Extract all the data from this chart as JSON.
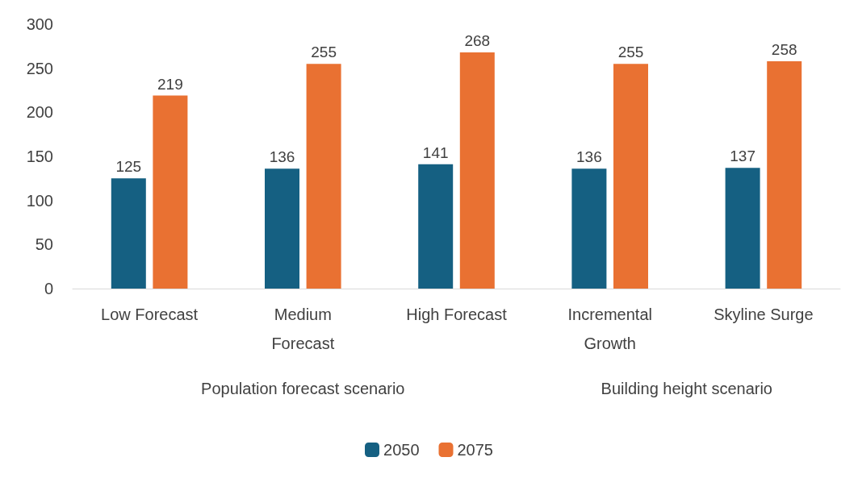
{
  "chart_data": {
    "type": "bar",
    "categories": [
      "Low Forecast",
      "Medium\nForecast",
      "High Forecast",
      "Incremental\nGrowth",
      "Skyline Surge"
    ],
    "series": [
      {
        "name": "2050",
        "color": "#156082",
        "values": [
          125,
          136,
          141,
          136,
          137
        ]
      },
      {
        "name": "2075",
        "color": "#e97132",
        "values": [
          219,
          255,
          268,
          255,
          258
        ]
      }
    ],
    "ylim": [
      0,
      300
    ],
    "yticks": [
      0,
      50,
      100,
      150,
      200,
      250,
      300
    ],
    "grid": false,
    "legend": "bottom",
    "data_labels": true,
    "annotations": [
      "Population forecast scenario",
      "Building height scenario"
    ]
  }
}
